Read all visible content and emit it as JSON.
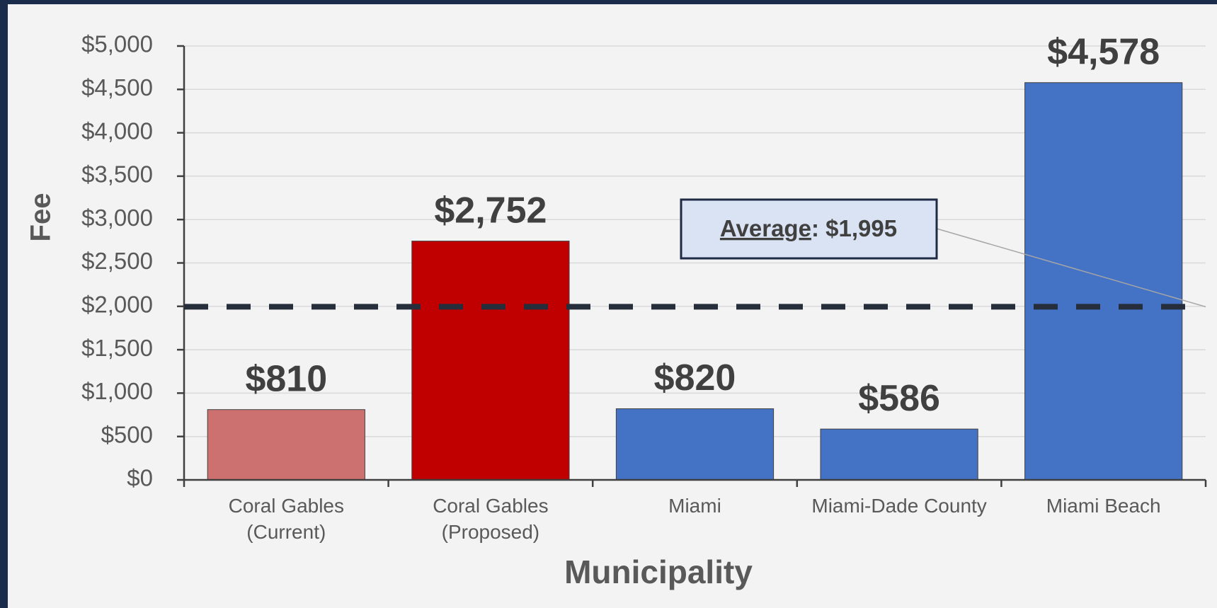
{
  "chart_data": {
    "type": "bar",
    "x_label": "Municipality",
    "y_label": "Fee",
    "categories": [
      "Coral Gables (Current)",
      "Coral Gables (Proposed)",
      "Miami",
      "Miami-Dade County",
      "Miami Beach"
    ],
    "values": [
      810,
      2752,
      820,
      586,
      4578
    ],
    "value_labels": [
      "$810",
      "$2,752",
      "$820",
      "$586",
      "$4,578"
    ],
    "colors": [
      "#cd7170",
      "#c00000",
      "#4472c4",
      "#4472c4",
      "#4472c4"
    ],
    "ylim": [
      0,
      5000
    ],
    "yticks": [
      {
        "value": 0,
        "label": "$0"
      },
      {
        "value": 500,
        "label": "$500"
      },
      {
        "value": 1000,
        "label": "$1,000"
      },
      {
        "value": 1500,
        "label": "$1,500"
      },
      {
        "value": 2000,
        "label": "$2,000"
      },
      {
        "value": 2500,
        "label": "$2,500"
      },
      {
        "value": 3000,
        "label": "$3,000"
      },
      {
        "value": 3500,
        "label": "$3,500"
      },
      {
        "value": 4000,
        "label": "$4,000"
      },
      {
        "value": 4500,
        "label": "$4,500"
      },
      {
        "value": 5000,
        "label": "$5,000"
      }
    ],
    "grid": true,
    "average": {
      "name": "Average",
      "separator": ": ",
      "value": 1995,
      "label": "$1,995"
    }
  }
}
